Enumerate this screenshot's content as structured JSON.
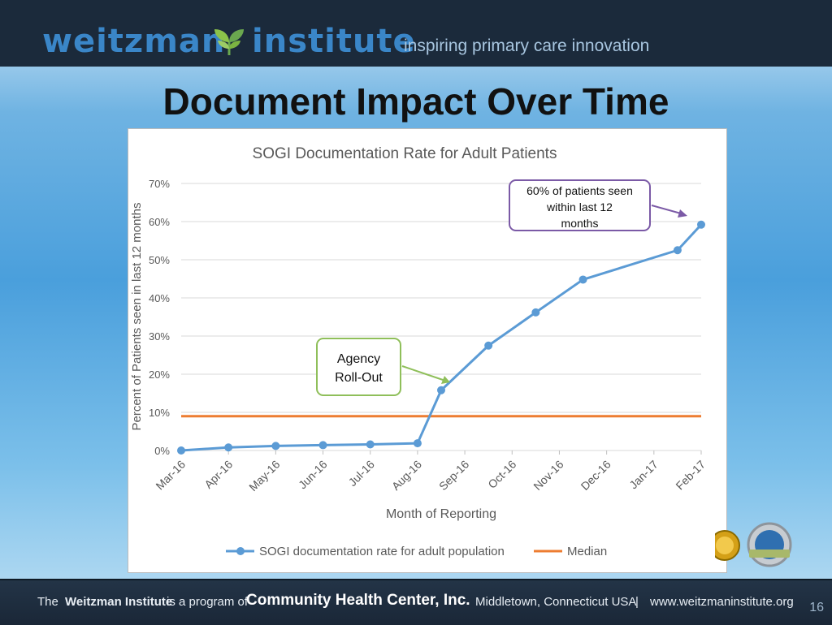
{
  "header": {
    "logo_left": "weitzman",
    "logo_right": "institute",
    "tagline": "inspiring primary care innovation"
  },
  "page_title": "Document Impact Over Time",
  "chart_data": {
    "type": "line",
    "title": "SOGI Documentation Rate for Adult Patients",
    "xlabel": "Month of Reporting",
    "ylabel": "Percent of Patients seen in last 12 months",
    "categories": [
      "Mar-16",
      "Apr-16",
      "May-16",
      "Jun-16",
      "Jul-16",
      "Aug-16",
      "Sep-16",
      "Oct-16",
      "Nov-16",
      "Dec-16",
      "Jan-17",
      "Feb-17"
    ],
    "y_ticks": [
      "0%",
      "10%",
      "20%",
      "30%",
      "40%",
      "50%",
      "60%",
      "70%"
    ],
    "ylim": [
      0,
      70
    ],
    "grid": true,
    "legend_position": "bottom",
    "series": [
      {
        "name": "SOGI documentation rate for adult population",
        "color": "#5b9bd5",
        "points": [
          {
            "x": "Mar-16",
            "y": 0
          },
          {
            "x": "Apr-16",
            "y": 0.8
          },
          {
            "x": "May-16",
            "y": 1.2
          },
          {
            "x": "Jun-16",
            "y": 1.4
          },
          {
            "x": "Jul-16",
            "y": 1.6
          },
          {
            "x": "Aug-16",
            "y": 1.9
          },
          {
            "x": "Aug-16→Sep-16",
            "y": 15.8
          },
          {
            "x": "Sep-16→Oct-16",
            "y": 27.5
          },
          {
            "x": "Oct-16→Nov-16",
            "y": 36.2
          },
          {
            "x": "Nov-16→Dec-16",
            "y": 44.8
          },
          {
            "x": "Jan-17→Feb-17",
            "y": 52.5
          },
          {
            "x": "Feb-17",
            "y": 59.2
          }
        ]
      },
      {
        "name": "Median",
        "color": "#ed7d31",
        "points": [
          {
            "x": "Mar-16",
            "y": 9
          },
          {
            "x": "Feb-17",
            "y": 9
          }
        ]
      }
    ],
    "annotations": [
      {
        "name": "agency-rollout",
        "lines": [
          "Agency",
          "Roll-Out"
        ],
        "color": "#8fbf5a"
      },
      {
        "name": "sixty-percent",
        "lines": [
          "60% of patients seen",
          "within last 12",
          "months"
        ],
        "color": "#7b5aa6"
      }
    ]
  },
  "footer": {
    "the": "The",
    "org_name": "Weitzman Institute",
    "program_text": "is a program of",
    "parent_org": "Community Health Center, Inc.",
    "location": "Middletown, Connecticut USA",
    "separator": "|",
    "website": "www.weitzmaninstitute.org"
  },
  "page_number": "16"
}
